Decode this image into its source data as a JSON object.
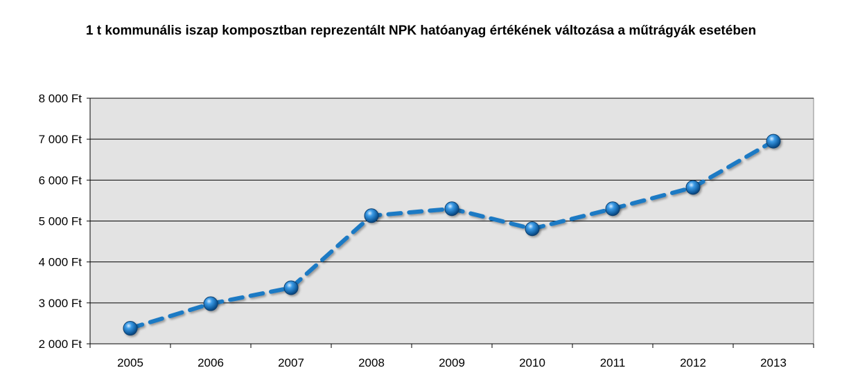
{
  "chart_data": {
    "type": "line",
    "title": "1 t kommunális iszap komposztban reprezentált NPK hatóanyag értékének változása a műtrágyák esetében",
    "categories": [
      "2005",
      "2006",
      "2007",
      "2008",
      "2009",
      "2010",
      "2011",
      "2012",
      "2013"
    ],
    "series": [
      {
        "values": [
          2380,
          2980,
          3370,
          5130,
          5300,
          4810,
          5300,
          5820,
          6950
        ]
      }
    ],
    "y_ticks": [
      "2 000 Ft",
      "3 000 Ft",
      "4 000 Ft",
      "5 000 Ft",
      "6 000 Ft",
      "7 000 Ft",
      "8 000 Ft"
    ],
    "ylim": [
      2000,
      8000
    ],
    "y_step": 1000,
    "xlabel": "",
    "ylabel": "",
    "grid": true,
    "legend": "none",
    "line_style": "dashed",
    "colors": {
      "line": "#1f7ac4",
      "marker": "#2a86d0",
      "plot_background": "#e3e3e3",
      "grid": "#000000"
    }
  }
}
